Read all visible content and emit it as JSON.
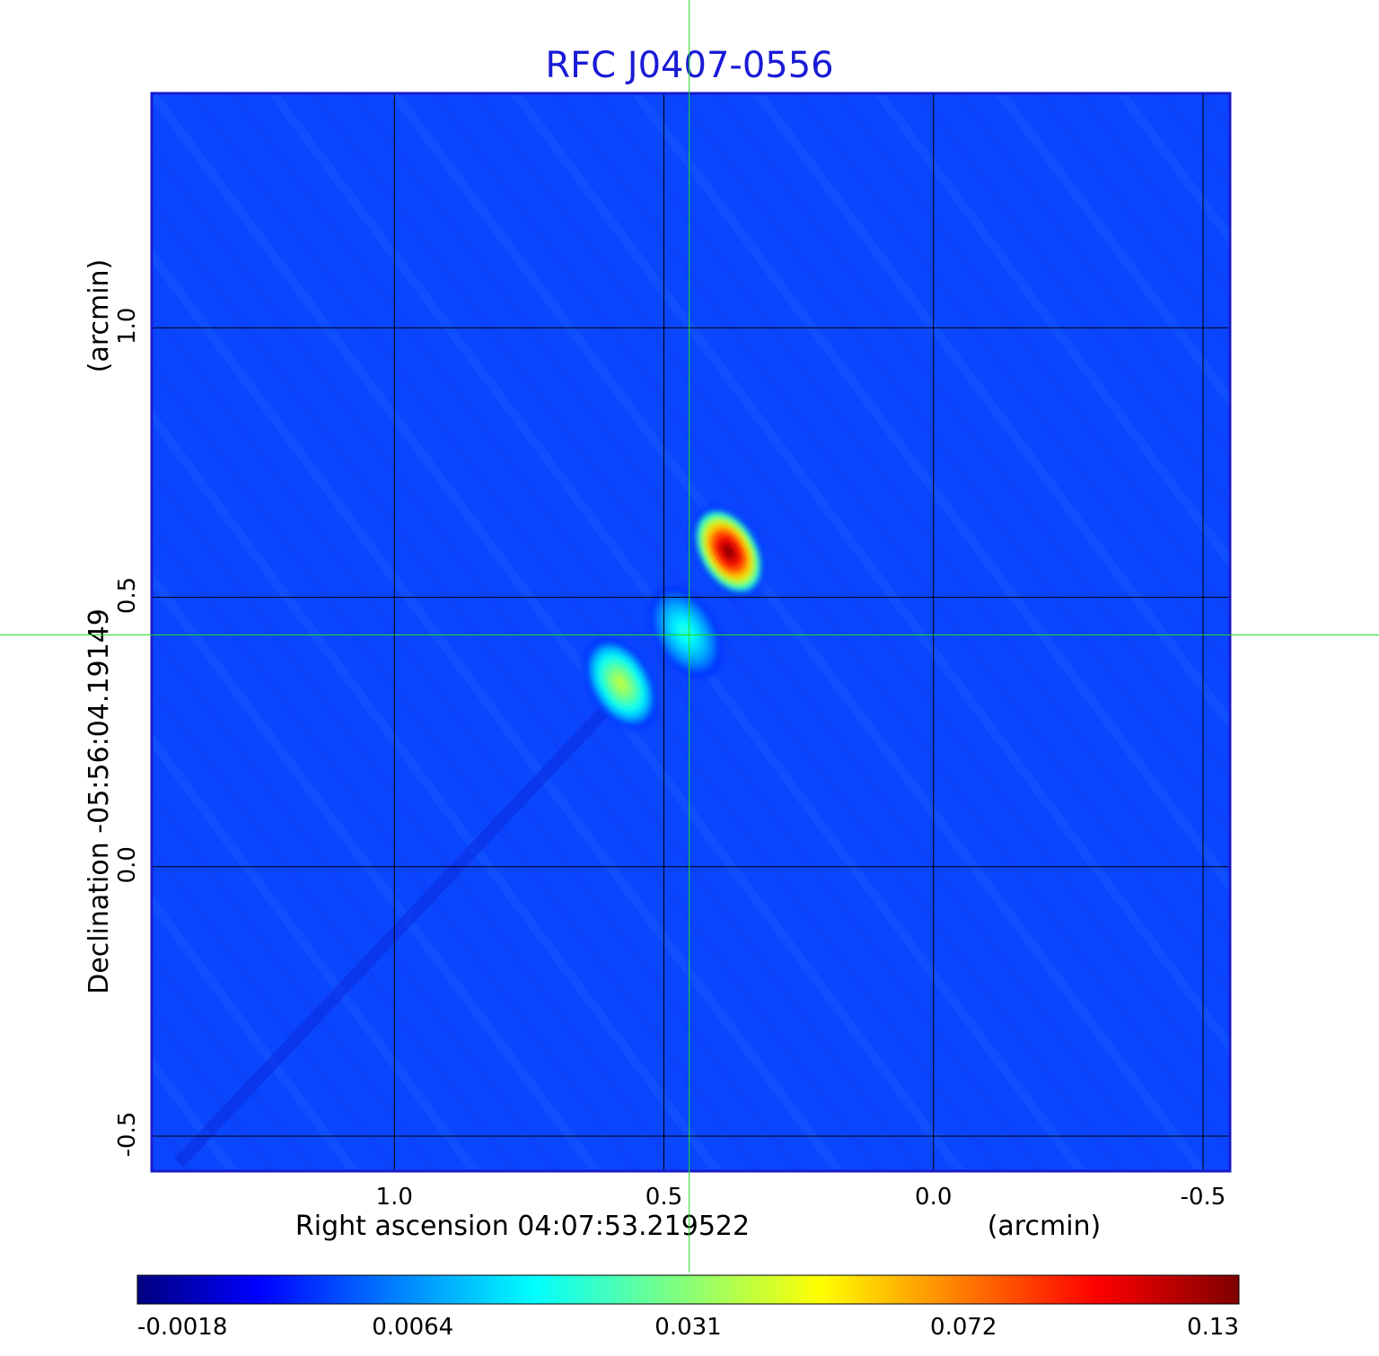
{
  "chart_data": {
    "type": "heatmap",
    "title": "RFC J0407-0556",
    "xlabel": "Right ascension  04:07:53.219522",
    "xunit": "(arcmin)",
    "ylabel": "Declination  -05:56:04.19149",
    "yunit": "(arcmin)",
    "x_ticks": [
      "1.0",
      "0.5",
      "0.0",
      "-0.5"
    ],
    "x_tick_values": [
      1.0,
      0.5,
      0.0,
      -0.5
    ],
    "y_ticks": [
      "1.0",
      "0.5",
      "0.0",
      "-0.5"
    ],
    "y_tick_values": [
      1.0,
      0.5,
      0.0,
      -0.5
    ],
    "xlim": [
      1.45,
      -0.55
    ],
    "ylim": [
      -0.565,
      1.435
    ],
    "grid": true,
    "crosshair": {
      "x": 0.453,
      "y": 0.43,
      "color": "#22dd22"
    },
    "colormap": "jet",
    "colorbar_ticks": [
      "-0.0018",
      "0.0064",
      "0.031",
      "0.072",
      "0.13"
    ],
    "colorbar_range": [
      -0.0018,
      0.13
    ],
    "background_level": 0.002,
    "sources": [
      {
        "x": 0.38,
        "y": 0.585,
        "peak": 0.13
      },
      {
        "x": 0.46,
        "y": 0.435,
        "peak": 0.02
      },
      {
        "x": 0.58,
        "y": 0.34,
        "peak": 0.04
      }
    ]
  }
}
